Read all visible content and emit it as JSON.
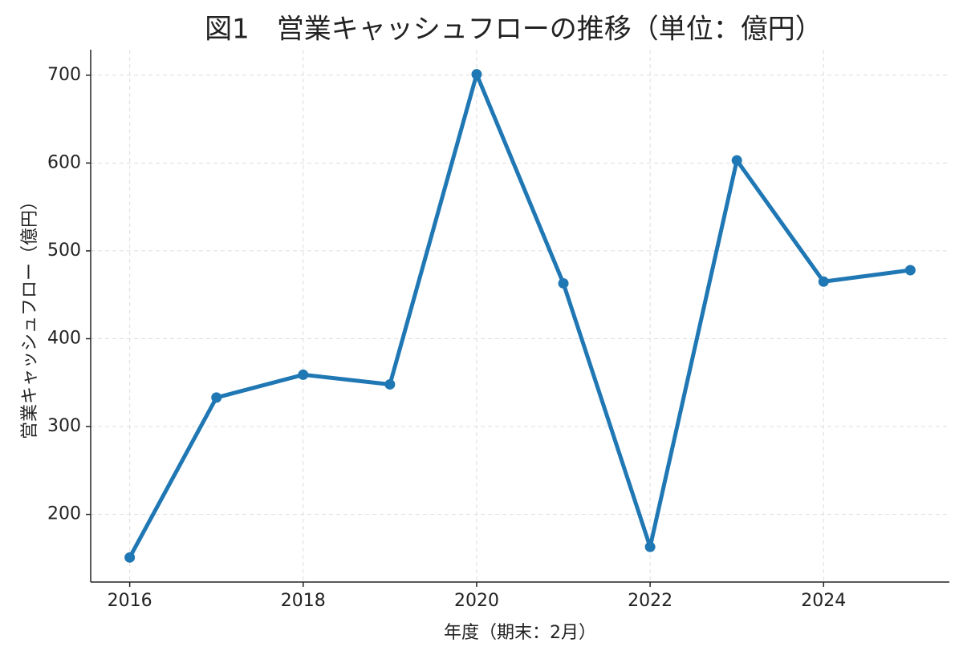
{
  "chart_data": {
    "type": "line",
    "title": "図1　営業キャッシュフローの推移（単位：億円）",
    "x_label": "年度（期末：2月）",
    "y_label": "営業キャッシュフロー（億円）",
    "x": [
      2016,
      2017,
      2018,
      2019,
      2020,
      2021,
      2022,
      2023,
      2024,
      2025
    ],
    "series": [
      {
        "name": "営業キャッシュフロー",
        "color": "#1f77b4",
        "values": [
          151,
          333,
          359,
          348,
          701,
          463,
          163,
          603,
          465,
          478
        ]
      }
    ],
    "xlim": [
      2015.55,
      2025.45
    ],
    "xticks": [
      2016,
      2018,
      2020,
      2022,
      2024
    ],
    "ylim": [
      123,
      729
    ],
    "yticks": [
      200,
      300,
      400,
      500,
      600,
      700
    ],
    "grid": true
  }
}
